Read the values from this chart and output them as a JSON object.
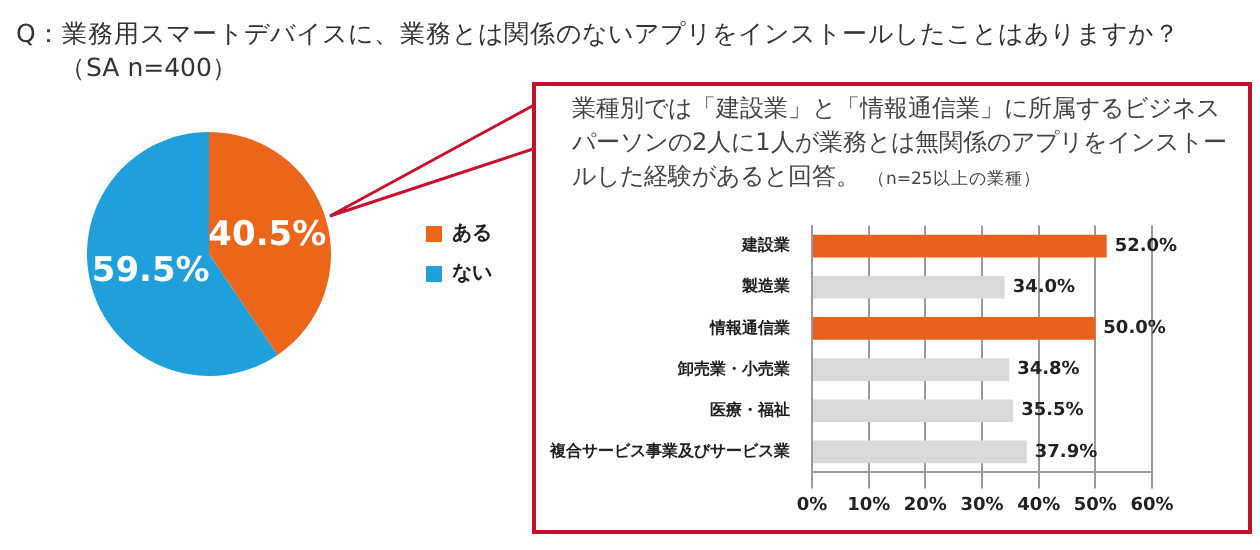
{
  "chart_data": [
    {
      "type": "pie",
      "title": "Q：業務用スマートデバイスに、業務とは関係のないアプリをインストールしたことはありますか？",
      "subtitle": "（SA n=400）",
      "categories": [
        "ある",
        "ない"
      ],
      "values": [
        40.5,
        59.5
      ],
      "colors": [
        "#ec6519",
        "#1fa0da"
      ],
      "value_labels": [
        "40.5%",
        "59.5%"
      ],
      "legend": "right"
    },
    {
      "type": "bar",
      "orientation": "horizontal",
      "title": "業種別では「建設業」と「情報通信業」に所属するビジネスパーソンの2人に1人が業務とは無関係のアプリをインストールした経験があると回答。",
      "subtitle": "（n=25以上の業種）",
      "categories": [
        "建設業",
        "製造業",
        "情報通信業",
        "卸売業・小売業",
        "医療・福祉",
        "複合サービス事業及びサービス業"
      ],
      "values": [
        52.0,
        34.0,
        50.0,
        34.8,
        35.5,
        37.9
      ],
      "colors": [
        "#e8601c",
        "#d9d9d9",
        "#e8601c",
        "#d9d9d9",
        "#d9d9d9",
        "#d9d9d9"
      ],
      "value_labels": [
        "52.0%",
        "34.0%",
        "50.0%",
        "34.8%",
        "35.5%",
        "37.9%"
      ],
      "xlim": [
        0,
        60
      ],
      "xticks": [
        {
          "value": 0,
          "label": "0%"
        },
        {
          "value": 10,
          "label": "10%"
        },
        {
          "value": 20,
          "label": "20%"
        },
        {
          "value": 30,
          "label": "30%"
        },
        {
          "value": 40,
          "label": "40%"
        },
        {
          "value": 50,
          "label": "50%"
        },
        {
          "value": 60,
          "label": "60%"
        }
      ],
      "grid": "x"
    }
  ]
}
